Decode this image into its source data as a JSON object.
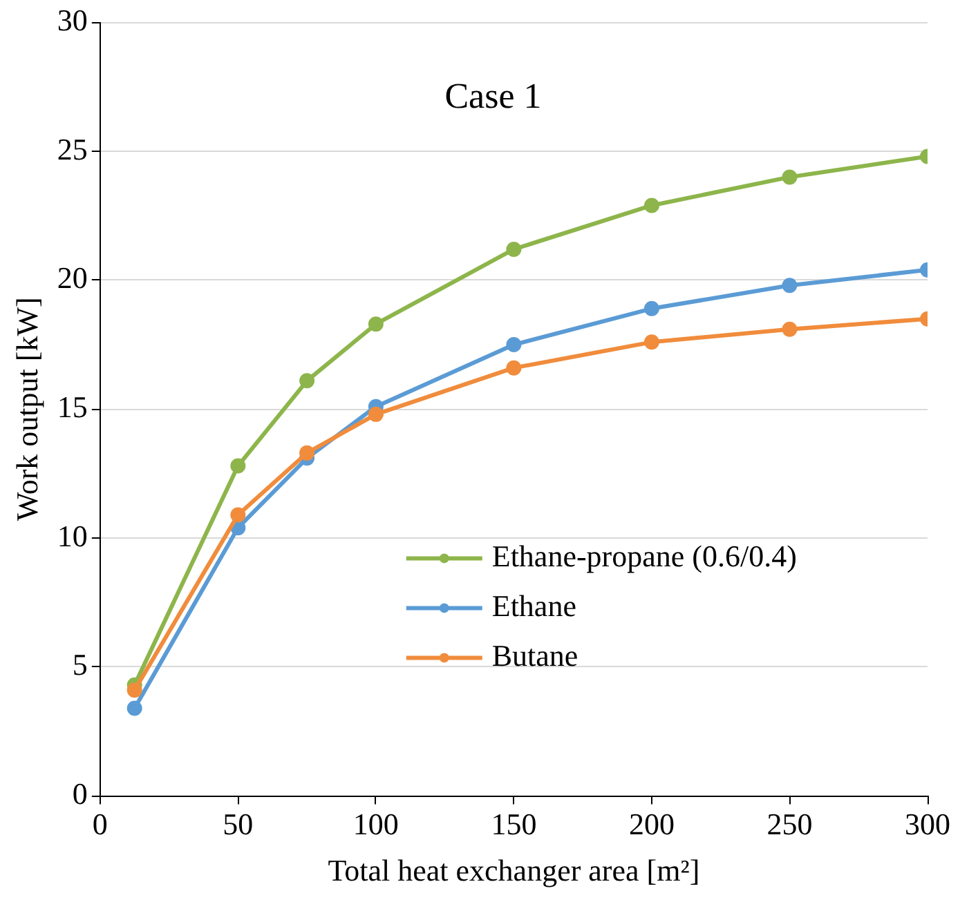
{
  "chart_data": {
    "type": "line",
    "title": "Case 1",
    "xlabel": "Total heat exchanger area [m²]",
    "ylabel": "Work output [kW]",
    "x": [
      12.5,
      50,
      75,
      100,
      150,
      200,
      250,
      300
    ],
    "series": [
      {
        "name": "Ethane-propane (0.6/0.4)",
        "color": "#8db54b",
        "values": [
          4.3,
          12.8,
          16.1,
          18.3,
          21.2,
          22.9,
          24.0,
          24.8
        ]
      },
      {
        "name": "Ethane",
        "color": "#5b9bd5",
        "values": [
          3.4,
          10.4,
          13.1,
          15.1,
          17.5,
          18.9,
          19.8,
          20.4
        ]
      },
      {
        "name": "Butane",
        "color": "#f08c3c",
        "values": [
          4.1,
          10.9,
          13.3,
          14.8,
          16.6,
          17.6,
          18.1,
          18.5
        ]
      }
    ],
    "xlim": [
      0,
      300
    ],
    "xticks": [
      0,
      50,
      100,
      150,
      200,
      250,
      300
    ],
    "ylim": [
      0,
      30
    ],
    "yticks": [
      0,
      5,
      10,
      15,
      20,
      25,
      30
    ],
    "grid": "y",
    "legend": "bottom right",
    "marker": "circle",
    "line_style": "solid"
  }
}
